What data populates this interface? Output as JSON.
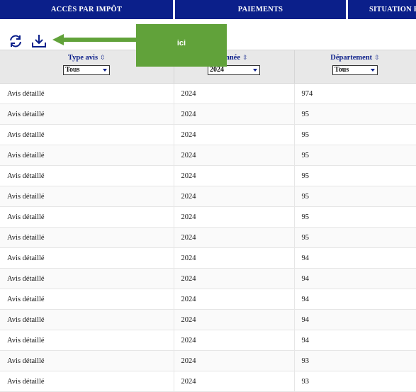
{
  "nav": {
    "tabs": [
      "ACCÈS PAR IMPÔT",
      "PAIEMENTS",
      "SITUATION F"
    ]
  },
  "toolbar": {
    "refresh_icon": "refresh-icon",
    "download_icon": "download-icon"
  },
  "annotation": {
    "label": "ici",
    "color": "#61a23a"
  },
  "table": {
    "columns": [
      {
        "label": "Type avis",
        "filter": "Tous"
      },
      {
        "label": "Année",
        "filter": "2024"
      },
      {
        "label": "Département",
        "filter": "Tous"
      }
    ],
    "rows": [
      [
        "Avis détaillé",
        "2024",
        "974"
      ],
      [
        "Avis détaillé",
        "2024",
        "95"
      ],
      [
        "Avis détaillé",
        "2024",
        "95"
      ],
      [
        "Avis détaillé",
        "2024",
        "95"
      ],
      [
        "Avis détaillé",
        "2024",
        "95"
      ],
      [
        "Avis détaillé",
        "2024",
        "95"
      ],
      [
        "Avis détaillé",
        "2024",
        "95"
      ],
      [
        "Avis détaillé",
        "2024",
        "95"
      ],
      [
        "Avis détaillé",
        "2024",
        "94"
      ],
      [
        "Avis détaillé",
        "2024",
        "94"
      ],
      [
        "Avis détaillé",
        "2024",
        "94"
      ],
      [
        "Avis détaillé",
        "2024",
        "94"
      ],
      [
        "Avis détaillé",
        "2024",
        "94"
      ],
      [
        "Avis détaillé",
        "2024",
        "93"
      ],
      [
        "Avis détaillé",
        "2024",
        "93"
      ]
    ]
  },
  "colors": {
    "nav_bg": "#0b1f8a",
    "header_bg": "#e8e8e8",
    "header_text": "#0b1f8a"
  }
}
